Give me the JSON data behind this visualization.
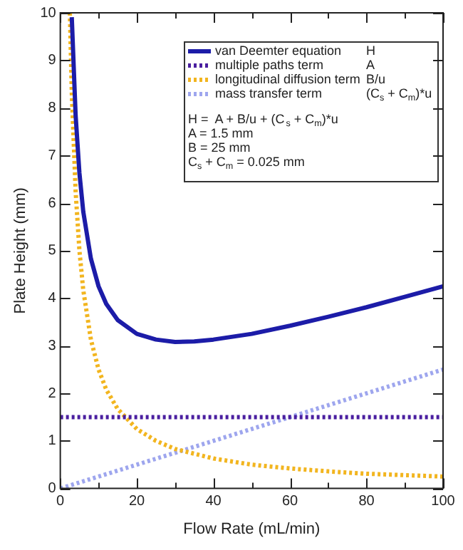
{
  "chart_data": {
    "type": "line",
    "xlabel": "Flow Rate (mL/min)",
    "ylabel": "Plate Height (mm)",
    "xlim": [
      0,
      100
    ],
    "ylim": [
      0,
      10
    ],
    "xticks": [
      0,
      {
        "value": 10,
        "label": null
      },
      20,
      {
        "value": 30,
        "label": null
      },
      40,
      {
        "value": 50,
        "label": null
      },
      60,
      {
        "value": 70,
        "label": null
      },
      80,
      {
        "value": 90,
        "label": null
      },
      100
    ],
    "yticks": [
      0,
      1,
      2,
      3,
      4,
      5,
      6,
      7,
      8,
      9,
      10
    ],
    "grid": false,
    "legend": "top right",
    "marker": "none",
    "series": [
      {
        "name": "van Deemter equation",
        "color": "#1c1ca8",
        "line_style": "solid",
        "x": [
          3,
          4,
          5,
          6,
          8,
          10,
          12,
          15,
          20,
          25,
          30,
          35,
          40,
          50,
          60,
          70,
          80,
          90,
          100
        ],
        "values": [
          9.91,
          7.85,
          6.63,
          5.82,
          4.83,
          4.25,
          3.88,
          3.54,
          3.25,
          3.13,
          3.08,
          3.09,
          3.13,
          3.25,
          3.42,
          3.61,
          3.81,
          4.03,
          4.25
        ]
      },
      {
        "name": "multiple paths term",
        "color": "#4a1fa0",
        "line_style": "dotted",
        "x": [
          0,
          100
        ],
        "values": [
          1.5,
          1.5
        ]
      },
      {
        "name": "longitudinal diffusion term",
        "color": "#f2b51f",
        "line_style": "dotted",
        "x": [
          2.5,
          3,
          4,
          5,
          6,
          8,
          10,
          12,
          15,
          20,
          25,
          30,
          40,
          50,
          60,
          70,
          80,
          90,
          100
        ],
        "values": [
          10,
          8.33,
          6.25,
          5,
          4.17,
          3.13,
          2.5,
          2.08,
          1.67,
          1.25,
          1,
          0.83,
          0.63,
          0.5,
          0.42,
          0.36,
          0.31,
          0.28,
          0.25
        ]
      },
      {
        "name": "mass transfer term",
        "color": "#9ea6ee",
        "line_style": "dotted",
        "x": [
          0,
          100
        ],
        "values": [
          0,
          2.5
        ]
      }
    ],
    "annotations": [
      "H",
      "A",
      "B/u",
      "(C$_{s}$ + C$_{m}$)*u",
      "H =  A + B/u + (C$_{s}$ + C$_{m}$)*u",
      "A = 1.5 mm",
      "B = 25 mm",
      "C$_{s}$ + C$_{m}$ = 0.025 mm"
    ]
  }
}
